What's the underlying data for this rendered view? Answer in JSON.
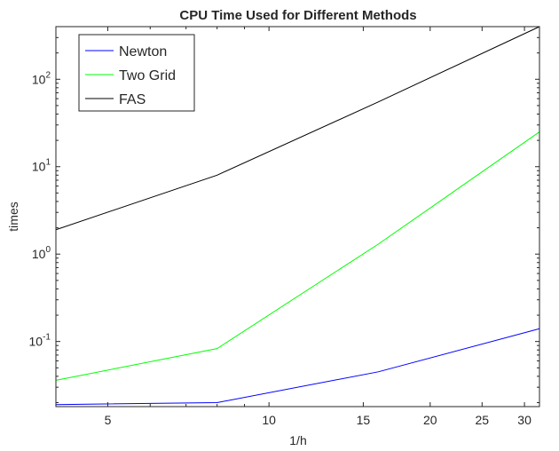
{
  "chart_data": {
    "type": "line",
    "title": "CPU Time Used for Different Methods",
    "xlabel": "1/h",
    "ylabel": "times",
    "xscale": "log",
    "yscale": "log",
    "xlim": [
      4,
      32
    ],
    "ylim": [
      0.018,
      400
    ],
    "grid": false,
    "legend_position": "top-left",
    "x": [
      4,
      8,
      16,
      32
    ],
    "series": [
      {
        "name": "Newton",
        "color": "#0000ff",
        "values": [
          0.019,
          0.02,
          0.045,
          0.14
        ]
      },
      {
        "name": "Two Grid",
        "color": "#00ff00",
        "values": [
          0.036,
          0.083,
          1.3,
          25
        ]
      },
      {
        "name": "FAS",
        "color": "#000000",
        "values": [
          1.9,
          8,
          55,
          400
        ]
      }
    ],
    "xticks": [
      {
        "value": 5,
        "label": "5"
      },
      {
        "value": 10,
        "label": "10"
      },
      {
        "value": 15,
        "label": "15"
      },
      {
        "value": 20,
        "label": "20"
      },
      {
        "value": 25,
        "label": "25"
      },
      {
        "value": 30,
        "label": "30"
      }
    ],
    "yticks": [
      {
        "value": 0.1,
        "base": "10",
        "exp": "-1"
      },
      {
        "value": 1,
        "base": "10",
        "exp": "0"
      },
      {
        "value": 10,
        "base": "10",
        "exp": "1"
      },
      {
        "value": 100,
        "base": "10",
        "exp": "2"
      }
    ]
  }
}
